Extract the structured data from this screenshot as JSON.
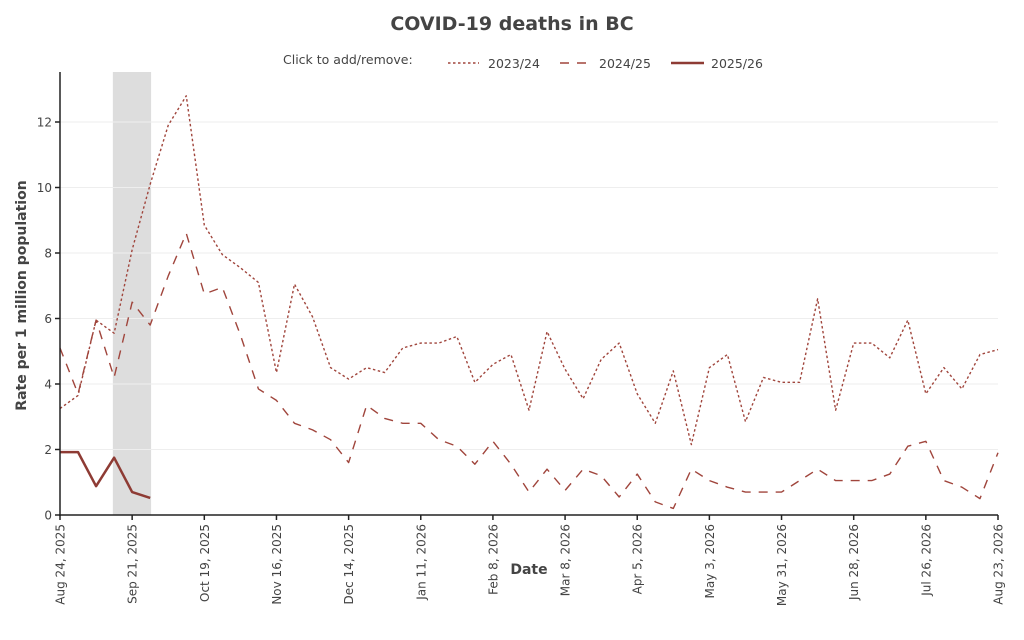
{
  "chart_data": {
    "type": "line",
    "title": "COVID-19 deaths in BC",
    "xlabel": "Date",
    "ylabel": "Rate per 1 million population",
    "ylim": [
      0,
      13.5
    ],
    "yticks": [
      0,
      2,
      4,
      6,
      8,
      10,
      12
    ],
    "grid": "horizontal",
    "x_start": "Aug 24, 2025",
    "x_unit": "week",
    "x_range_weeks": [
      0,
      52
    ],
    "xtick_labels": [
      "Aug 24, 2025",
      "Sep 21, 2025",
      "Oct 19, 2025",
      "Nov 16, 2025",
      "Dec 14, 2025",
      "Jan 11, 2026",
      "Feb 8, 2026",
      "Mar 8, 2026",
      "Apr 5, 2026",
      "May 3, 2026",
      "May 31, 2026",
      "Jun 28, 2026",
      "Jul 26, 2026",
      "Aug 23, 2026"
    ],
    "xtick_weeks": [
      0,
      4,
      8,
      12,
      16,
      20,
      24,
      28,
      32,
      36,
      40,
      44,
      48,
      52
    ],
    "highlight_band": {
      "from_week": 2.93,
      "to_week": 5.05,
      "color": "#dddddd"
    },
    "legend": {
      "prefix": "Click to add/remove:",
      "placement": "top-center"
    },
    "series": [
      {
        "name": "2023/24",
        "style": "dotted",
        "color": "#a0453c",
        "values": [
          3.25,
          3.65,
          5.95,
          5.55,
          8.1,
          10.1,
          11.9,
          12.8,
          8.85,
          7.95,
          7.55,
          7.1,
          4.35,
          7.05,
          6.05,
          4.5,
          4.15,
          4.5,
          4.35,
          5.1,
          5.25,
          5.25,
          5.45,
          4.05,
          4.6,
          4.9,
          3.2,
          5.6,
          4.45,
          3.55,
          4.75,
          5.25,
          3.7,
          2.8,
          4.4,
          2.15,
          4.5,
          4.9,
          2.85,
          4.2,
          4.05,
          4.05,
          6.6,
          3.2,
          5.25,
          5.25,
          4.8,
          5.95,
          3.7,
          4.5,
          3.85,
          4.9,
          5.05
        ]
      },
      {
        "name": "2024/25",
        "style": "dashed",
        "color": "#a0453c",
        "values": [
          5.1,
          3.7,
          5.95,
          4.2,
          6.5,
          5.8,
          7.3,
          8.6,
          6.75,
          6.95,
          5.5,
          3.85,
          3.5,
          2.8,
          2.6,
          2.3,
          1.6,
          3.35,
          2.95,
          2.8,
          2.8,
          2.3,
          2.1,
          1.55,
          2.25,
          1.55,
          0.7,
          1.4,
          0.75,
          1.4,
          1.2,
          0.55,
          1.25,
          0.4,
          0.2,
          1.4,
          1.05,
          0.85,
          0.7,
          0.7,
          0.7,
          1.05,
          1.4,
          1.05,
          1.05,
          1.05,
          1.25,
          2.1,
          2.25,
          1.05,
          0.85,
          0.5,
          1.9
        ]
      },
      {
        "name": "2025/26",
        "style": "solid",
        "color": "#8e3b34",
        "values": [
          1.92,
          1.92,
          0.88,
          1.75,
          0.7,
          0.52
        ]
      }
    ]
  }
}
